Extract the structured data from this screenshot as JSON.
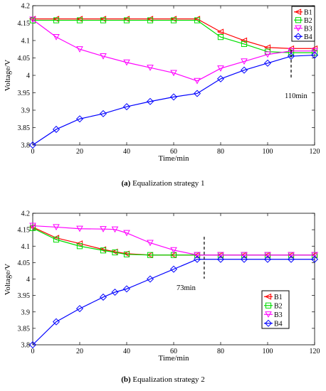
{
  "chart_data": [
    {
      "type": "line",
      "caption_label": "(a)",
      "caption_text": "Equalization strategy 1",
      "xlabel": "Time/min",
      "ylabel": "Voltage/V",
      "xlim": [
        0,
        120
      ],
      "ylim": [
        3.8,
        4.2
      ],
      "xticks": [
        "0",
        "20",
        "40",
        "60",
        "80",
        "100",
        "120"
      ],
      "yticks": [
        "3.8",
        "3.85",
        "3.9",
        "3.95",
        "4",
        "4.05",
        "4.1",
        "4.15",
        "4.2"
      ],
      "grid": false,
      "legend_position": "top-right",
      "annotation": {
        "text": "110min",
        "x": 110
      },
      "series": [
        {
          "name": "B1",
          "color": "#ff0000",
          "marker": "triangle-left",
          "x": [
            0,
            10,
            20,
            30,
            40,
            50,
            60,
            70,
            80,
            90,
            100,
            110,
            120
          ],
          "y": [
            4.162,
            4.162,
            4.162,
            4.162,
            4.162,
            4.162,
            4.162,
            4.162,
            4.125,
            4.1,
            4.08,
            4.077,
            4.077
          ]
        },
        {
          "name": "B2",
          "color": "#00dd00",
          "marker": "square",
          "x": [
            0,
            10,
            20,
            30,
            40,
            50,
            60,
            70,
            80,
            90,
            100,
            110,
            120
          ],
          "y": [
            4.158,
            4.158,
            4.158,
            4.158,
            4.158,
            4.158,
            4.158,
            4.158,
            4.11,
            4.09,
            4.068,
            4.065,
            4.065
          ]
        },
        {
          "name": "B3",
          "color": "#ff00ff",
          "marker": "triangle-down",
          "x": [
            0,
            10,
            20,
            30,
            40,
            50,
            60,
            70,
            80,
            90,
            100,
            110,
            120
          ],
          "y": [
            4.16,
            4.11,
            4.075,
            4.055,
            4.037,
            4.022,
            4.007,
            3.984,
            4.02,
            4.04,
            4.06,
            4.07,
            4.07
          ]
        },
        {
          "name": "B4",
          "color": "#0000ff",
          "marker": "diamond",
          "x": [
            0,
            10,
            20,
            30,
            40,
            50,
            60,
            70,
            80,
            90,
            100,
            110,
            120
          ],
          "y": [
            3.8,
            3.845,
            3.875,
            3.89,
            3.91,
            3.925,
            3.938,
            3.948,
            3.99,
            4.015,
            4.035,
            4.055,
            4.058
          ]
        }
      ]
    },
    {
      "type": "line",
      "caption_label": "(b)",
      "caption_text": "Equalization strategy 2",
      "xlabel": "Time/min",
      "ylabel": "Voltage/V",
      "xlim": [
        0,
        120
      ],
      "ylim": [
        3.8,
        4.2
      ],
      "xticks": [
        "0",
        "20",
        "40",
        "60",
        "80",
        "100",
        "120"
      ],
      "yticks": [
        "3.8",
        "3.85",
        "3.9",
        "3.95",
        "4",
        "4.05",
        "4.1",
        "4.15",
        "4.2"
      ],
      "grid": false,
      "legend_position": "right",
      "annotation": {
        "text": "73min",
        "x": 73
      },
      "series": [
        {
          "name": "B1",
          "color": "#ff0000",
          "marker": "triangle-left",
          "x": [
            0,
            10,
            20,
            30,
            35,
            40,
            50,
            60,
            70,
            80,
            90,
            100,
            110,
            120
          ],
          "y": [
            4.158,
            4.125,
            4.108,
            4.09,
            4.083,
            4.077,
            4.073,
            4.073,
            4.073,
            4.073,
            4.073,
            4.073,
            4.073,
            4.073
          ]
        },
        {
          "name": "B2",
          "color": "#00dd00",
          "marker": "square",
          "x": [
            0,
            10,
            20,
            30,
            35,
            40,
            50,
            60,
            70,
            80,
            90,
            100,
            110,
            120
          ],
          "y": [
            4.155,
            4.12,
            4.1,
            4.087,
            4.081,
            4.075,
            4.073,
            4.073,
            4.073,
            4.073,
            4.073,
            4.073,
            4.073,
            4.073
          ]
        },
        {
          "name": "B3",
          "color": "#ff00ff",
          "marker": "triangle-down",
          "x": [
            0,
            10,
            20,
            30,
            35,
            40,
            50,
            60,
            70,
            80,
            90,
            100,
            110,
            120
          ],
          "y": [
            4.162,
            4.158,
            4.153,
            4.152,
            4.151,
            4.14,
            4.11,
            4.088,
            4.073,
            4.073,
            4.073,
            4.073,
            4.073,
            4.073
          ]
        },
        {
          "name": "B4",
          "color": "#0000ff",
          "marker": "diamond",
          "x": [
            0,
            10,
            20,
            30,
            35,
            40,
            50,
            60,
            70,
            80,
            90,
            100,
            110,
            120
          ],
          "y": [
            3.8,
            3.87,
            3.91,
            3.945,
            3.96,
            3.97,
            4.0,
            4.03,
            4.06,
            4.06,
            4.06,
            4.06,
            4.06,
            4.06
          ]
        }
      ]
    }
  ]
}
